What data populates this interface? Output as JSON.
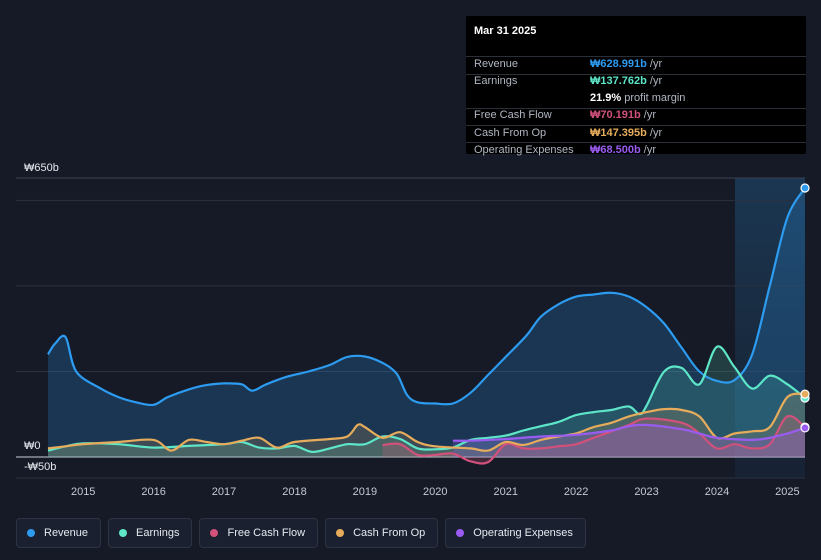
{
  "chart_data": {
    "type": "area",
    "currency": "₩",
    "y_axis": {
      "top_label": "₩650b",
      "zero_label": "₩0",
      "bottom_label": "-₩50b",
      "ylim": [
        -50,
        650
      ]
    },
    "x_axis": {
      "ticks": [
        "2015",
        "2016",
        "2017",
        "2018",
        "2019",
        "2020",
        "2021",
        "2022",
        "2023",
        "2024",
        "2025"
      ],
      "xlim": [
        2014.5,
        2025.25
      ]
    },
    "forecast_start": 2024.25,
    "series": [
      {
        "name": "Revenue",
        "color": "#2d9bf0",
        "points": [
          [
            2014.5,
            240
          ],
          [
            2014.6,
            265
          ],
          [
            2014.75,
            280
          ],
          [
            2014.9,
            200
          ],
          [
            2015.25,
            160
          ],
          [
            2015.5,
            140
          ],
          [
            2015.75,
            128
          ],
          [
            2016.0,
            122
          ],
          [
            2016.2,
            140
          ],
          [
            2016.5,
            158
          ],
          [
            2016.75,
            168
          ],
          [
            2017.0,
            172
          ],
          [
            2017.25,
            170
          ],
          [
            2017.4,
            155
          ],
          [
            2017.6,
            170
          ],
          [
            2017.9,
            188
          ],
          [
            2018.2,
            200
          ],
          [
            2018.5,
            215
          ],
          [
            2018.75,
            234
          ],
          [
            2019.0,
            235
          ],
          [
            2019.25,
            220
          ],
          [
            2019.45,
            195
          ],
          [
            2019.6,
            145
          ],
          [
            2019.75,
            128
          ],
          [
            2020.0,
            125
          ],
          [
            2020.25,
            125
          ],
          [
            2020.5,
            150
          ],
          [
            2020.75,
            192
          ],
          [
            2021.0,
            234
          ],
          [
            2021.3,
            285
          ],
          [
            2021.5,
            328
          ],
          [
            2021.75,
            357
          ],
          [
            2022.0,
            375
          ],
          [
            2022.25,
            380
          ],
          [
            2022.5,
            384
          ],
          [
            2022.75,
            375
          ],
          [
            2023.0,
            350
          ],
          [
            2023.25,
            312
          ],
          [
            2023.5,
            255
          ],
          [
            2023.75,
            200
          ],
          [
            2024.0,
            178
          ],
          [
            2024.25,
            180
          ],
          [
            2024.5,
            240
          ],
          [
            2024.75,
            400
          ],
          [
            2025.0,
            560
          ],
          [
            2025.25,
            629
          ]
        ]
      },
      {
        "name": "Earnings",
        "color": "#5ee6c9",
        "points": [
          [
            2014.5,
            15
          ],
          [
            2014.75,
            25
          ],
          [
            2015.0,
            32
          ],
          [
            2015.5,
            30
          ],
          [
            2016.0,
            22
          ],
          [
            2016.5,
            26
          ],
          [
            2017.0,
            30
          ],
          [
            2017.25,
            35
          ],
          [
            2017.5,
            22
          ],
          [
            2017.75,
            20
          ],
          [
            2018.0,
            26
          ],
          [
            2018.25,
            12
          ],
          [
            2018.5,
            20
          ],
          [
            2018.75,
            30
          ],
          [
            2019.0,
            30
          ],
          [
            2019.25,
            48
          ],
          [
            2019.5,
            42
          ],
          [
            2019.75,
            20
          ],
          [
            2020.0,
            18
          ],
          [
            2020.25,
            22
          ],
          [
            2020.5,
            40
          ],
          [
            2020.75,
            45
          ],
          [
            2021.0,
            50
          ],
          [
            2021.25,
            62
          ],
          [
            2021.5,
            72
          ],
          [
            2021.75,
            82
          ],
          [
            2022.0,
            98
          ],
          [
            2022.25,
            105
          ],
          [
            2022.5,
            110
          ],
          [
            2022.75,
            118
          ],
          [
            2022.9,
            100
          ],
          [
            2023.0,
            120
          ],
          [
            2023.25,
            200
          ],
          [
            2023.5,
            208
          ],
          [
            2023.75,
            170
          ],
          [
            2024.0,
            258
          ],
          [
            2024.25,
            210
          ],
          [
            2024.5,
            160
          ],
          [
            2024.75,
            190
          ],
          [
            2025.0,
            170
          ],
          [
            2025.25,
            138
          ]
        ]
      },
      {
        "name": "Free Cash Flow",
        "color": "#d1517b",
        "points": [
          [
            2019.25,
            28
          ],
          [
            2019.5,
            30
          ],
          [
            2019.75,
            5
          ],
          [
            2020.0,
            5
          ],
          [
            2020.25,
            8
          ],
          [
            2020.5,
            -10
          ],
          [
            2020.75,
            -12
          ],
          [
            2021.0,
            30
          ],
          [
            2021.25,
            20
          ],
          [
            2021.5,
            20
          ],
          [
            2021.75,
            25
          ],
          [
            2022.0,
            30
          ],
          [
            2022.25,
            45
          ],
          [
            2022.5,
            60
          ],
          [
            2022.75,
            75
          ],
          [
            2023.0,
            90
          ],
          [
            2023.5,
            80
          ],
          [
            2023.75,
            55
          ],
          [
            2024.0,
            20
          ],
          [
            2024.25,
            30
          ],
          [
            2024.5,
            20
          ],
          [
            2024.75,
            30
          ],
          [
            2025.0,
            95
          ],
          [
            2025.25,
            70
          ]
        ]
      },
      {
        "name": "Cash From Op",
        "color": "#e6ac5c",
        "points": [
          [
            2014.5,
            20
          ],
          [
            2014.75,
            25
          ],
          [
            2015.0,
            30
          ],
          [
            2015.5,
            35
          ],
          [
            2016.0,
            40
          ],
          [
            2016.25,
            15
          ],
          [
            2016.5,
            40
          ],
          [
            2016.75,
            35
          ],
          [
            2017.0,
            30
          ],
          [
            2017.25,
            38
          ],
          [
            2017.5,
            45
          ],
          [
            2017.75,
            22
          ],
          [
            2018.0,
            35
          ],
          [
            2018.5,
            42
          ],
          [
            2018.75,
            48
          ],
          [
            2018.9,
            75
          ],
          [
            2019.0,
            70
          ],
          [
            2019.25,
            45
          ],
          [
            2019.5,
            58
          ],
          [
            2019.75,
            35
          ],
          [
            2020.0,
            25
          ],
          [
            2020.5,
            20
          ],
          [
            2020.75,
            15
          ],
          [
            2021.0,
            35
          ],
          [
            2021.25,
            28
          ],
          [
            2021.5,
            40
          ],
          [
            2021.75,
            48
          ],
          [
            2022.0,
            55
          ],
          [
            2022.25,
            70
          ],
          [
            2022.5,
            80
          ],
          [
            2022.75,
            95
          ],
          [
            2023.0,
            105
          ],
          [
            2023.25,
            112
          ],
          [
            2023.5,
            110
          ],
          [
            2023.75,
            95
          ],
          [
            2024.0,
            45
          ],
          [
            2024.25,
            55
          ],
          [
            2024.5,
            60
          ],
          [
            2024.75,
            70
          ],
          [
            2025.0,
            140
          ],
          [
            2025.25,
            147
          ]
        ]
      },
      {
        "name": "Operating Expenses",
        "color": "#9a5cf0",
        "points": [
          [
            2020.25,
            38
          ],
          [
            2020.5,
            38
          ],
          [
            2020.75,
            40
          ],
          [
            2021.0,
            42
          ],
          [
            2021.5,
            48
          ],
          [
            2022.0,
            52
          ],
          [
            2022.5,
            62
          ],
          [
            2022.75,
            72
          ],
          [
            2023.0,
            75
          ],
          [
            2023.5,
            65
          ],
          [
            2023.75,
            55
          ],
          [
            2024.0,
            45
          ],
          [
            2024.5,
            40
          ],
          [
            2024.75,
            45
          ],
          [
            2025.0,
            55
          ],
          [
            2025.25,
            68
          ]
        ]
      }
    ]
  },
  "tooltip": {
    "date": "Mar 31 2025",
    "rows": [
      {
        "label": "Revenue",
        "value": "₩628.991b",
        "unit": " /yr",
        "color": "#2d9bf0"
      },
      {
        "label": "Earnings",
        "value": "₩137.762b",
        "unit": " /yr",
        "color": "#5ee6c9"
      },
      {
        "label": "",
        "value": "21.9%",
        "unit": " profit margin",
        "color": "#ffffff"
      },
      {
        "label": "Free Cash Flow",
        "value": "₩70.191b",
        "unit": " /yr",
        "color": "#d1517b"
      },
      {
        "label": "Cash From Op",
        "value": "₩147.395b",
        "unit": " /yr",
        "color": "#e6ac5c"
      },
      {
        "label": "Operating Expenses",
        "value": "₩68.500b",
        "unit": " /yr",
        "color": "#9a5cf0"
      }
    ]
  },
  "legend": [
    {
      "label": "Revenue",
      "color": "#2d9bf0"
    },
    {
      "label": "Earnings",
      "color": "#5ee6c9"
    },
    {
      "label": "Free Cash Flow",
      "color": "#d1517b"
    },
    {
      "label": "Cash From Op",
      "color": "#e6ac5c"
    },
    {
      "label": "Operating Expenses",
      "color": "#9a5cf0"
    }
  ]
}
